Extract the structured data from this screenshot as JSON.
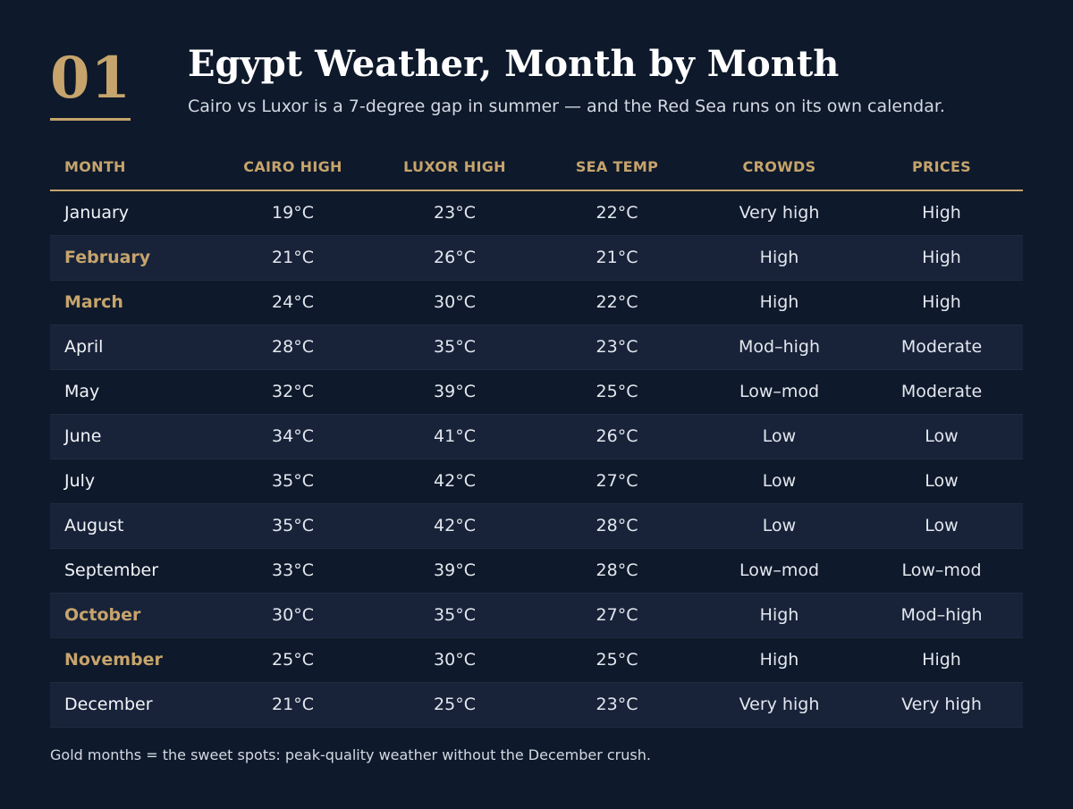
{
  "header": {
    "number": "01",
    "title": "Egypt Weather, Month by Month",
    "subtitle": "Cairo vs Luxor is a 7-degree gap in summer — and the Red Sea runs on its own calendar."
  },
  "table": {
    "columns": [
      "MONTH",
      "CAIRO HIGH",
      "LUXOR HIGH",
      "SEA TEMP",
      "CROWDS",
      "PRICES"
    ],
    "rows": [
      {
        "month": "January",
        "cairo": "19°C",
        "luxor": "23°C",
        "sea": "22°C",
        "crowds": "Very high",
        "prices": "High",
        "sweet": false
      },
      {
        "month": "February",
        "cairo": "21°C",
        "luxor": "26°C",
        "sea": "21°C",
        "crowds": "High",
        "prices": "High",
        "sweet": true
      },
      {
        "month": "March",
        "cairo": "24°C",
        "luxor": "30°C",
        "sea": "22°C",
        "crowds": "High",
        "prices": "High",
        "sweet": true
      },
      {
        "month": "April",
        "cairo": "28°C",
        "luxor": "35°C",
        "sea": "23°C",
        "crowds": "Mod–high",
        "prices": "Moderate",
        "sweet": false
      },
      {
        "month": "May",
        "cairo": "32°C",
        "luxor": "39°C",
        "sea": "25°C",
        "crowds": "Low–mod",
        "prices": "Moderate",
        "sweet": false
      },
      {
        "month": "June",
        "cairo": "34°C",
        "luxor": "41°C",
        "sea": "26°C",
        "crowds": "Low",
        "prices": "Low",
        "sweet": false
      },
      {
        "month": "July",
        "cairo": "35°C",
        "luxor": "42°C",
        "sea": "27°C",
        "crowds": "Low",
        "prices": "Low",
        "sweet": false
      },
      {
        "month": "August",
        "cairo": "35°C",
        "luxor": "42°C",
        "sea": "28°C",
        "crowds": "Low",
        "prices": "Low",
        "sweet": false
      },
      {
        "month": "September",
        "cairo": "33°C",
        "luxor": "39°C",
        "sea": "28°C",
        "crowds": "Low–mod",
        "prices": "Low–mod",
        "sweet": false
      },
      {
        "month": "October",
        "cairo": "30°C",
        "luxor": "35°C",
        "sea": "27°C",
        "crowds": "High",
        "prices": "Mod–high",
        "sweet": true
      },
      {
        "month": "November",
        "cairo": "25°C",
        "luxor": "30°C",
        "sea": "25°C",
        "crowds": "High",
        "prices": "High",
        "sweet": true
      },
      {
        "month": "December",
        "cairo": "21°C",
        "luxor": "25°C",
        "sea": "23°C",
        "crowds": "Very high",
        "prices": "Very high",
        "sweet": false
      }
    ]
  },
  "footnote": "Gold months = the sweet spots: peak-quality weather without the December crush.",
  "colors": {
    "background": "#0e192b",
    "accent_gold": "#c6a46c",
    "row_stripe": "#18233a"
  }
}
